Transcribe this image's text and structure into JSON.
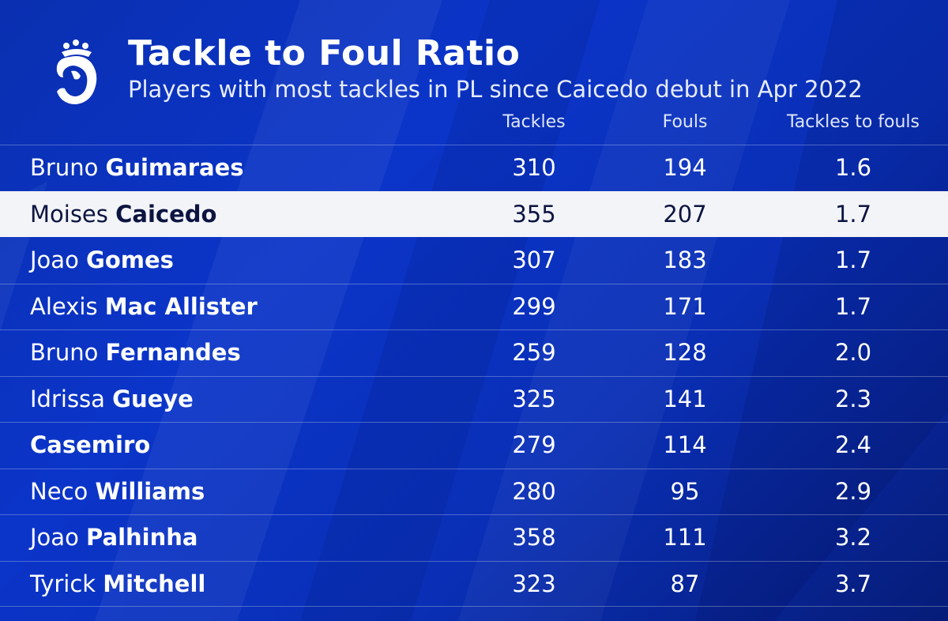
{
  "header": {
    "title": "Tackle to Foul Ratio",
    "subtitle": "Players with most tackles in PL since Caicedo debut in Apr 2022"
  },
  "columns": {
    "tackles": "Tackles",
    "fouls": "Fouls",
    "ratio": "Tackles to fouls"
  },
  "logo_icon": "premier-league-lion-icon",
  "colors": {
    "background": "#0b35c9",
    "highlight_row": "#f3f4f8",
    "highlight_text": "#0c1440",
    "text": "#ffffff"
  },
  "rows": [
    {
      "first": "Bruno",
      "last": "Guimaraes",
      "tackles": "310",
      "fouls": "194",
      "ratio": "1.6",
      "highlight": false
    },
    {
      "first": "Moises",
      "last": "Caicedo",
      "tackles": "355",
      "fouls": "207",
      "ratio": "1.7",
      "highlight": true
    },
    {
      "first": "Joao",
      "last": "Gomes",
      "tackles": "307",
      "fouls": "183",
      "ratio": "1.7",
      "highlight": false
    },
    {
      "first": "Alexis",
      "last": "Mac Allister",
      "tackles": "299",
      "fouls": "171",
      "ratio": "1.7",
      "highlight": false
    },
    {
      "first": "Bruno",
      "last": "Fernandes",
      "tackles": "259",
      "fouls": "128",
      "ratio": "2.0",
      "highlight": false
    },
    {
      "first": "Idrissa",
      "last": "Gueye",
      "tackles": "325",
      "fouls": "141",
      "ratio": "2.3",
      "highlight": false
    },
    {
      "first": "",
      "last": "Casemiro",
      "tackles": "279",
      "fouls": "114",
      "ratio": "2.4",
      "highlight": false
    },
    {
      "first": "Neco",
      "last": "Williams",
      "tackles": "280",
      "fouls": "95",
      "ratio": "2.9",
      "highlight": false
    },
    {
      "first": "Joao",
      "last": "Palhinha",
      "tackles": "358",
      "fouls": "111",
      "ratio": "3.2",
      "highlight": false
    },
    {
      "first": "Tyrick",
      "last": "Mitchell",
      "tackles": "323",
      "fouls": "87",
      "ratio": "3.7",
      "highlight": false
    }
  ]
}
